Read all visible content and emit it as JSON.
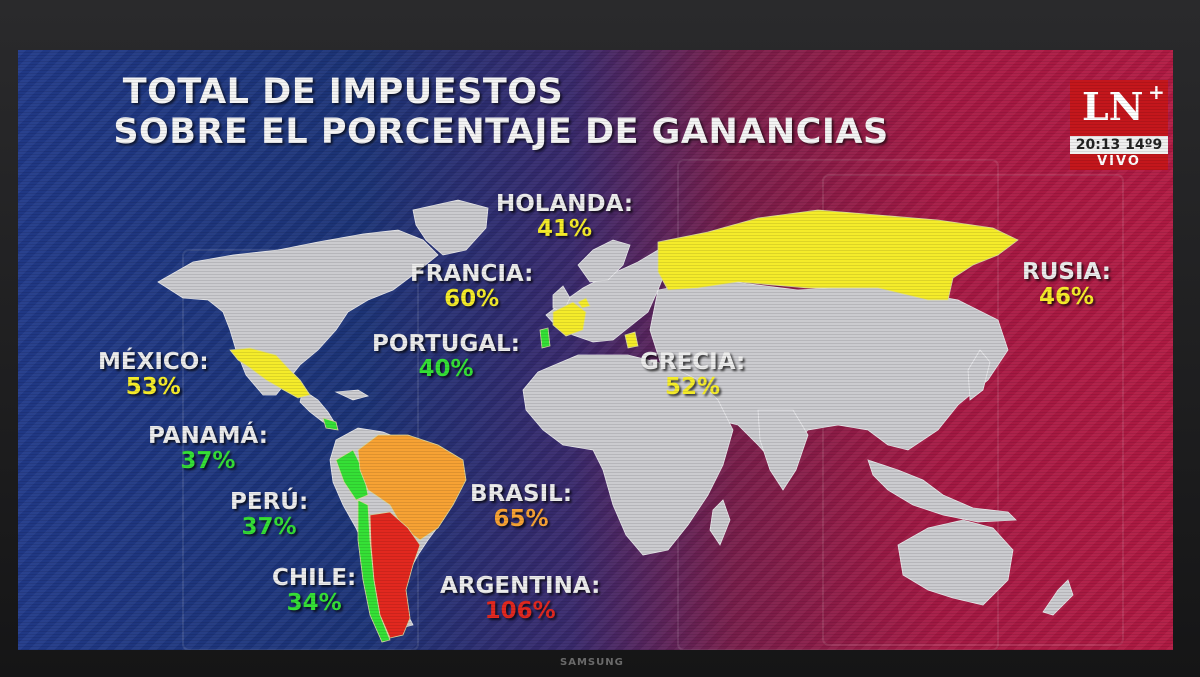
{
  "title": {
    "line1": "TOTAL DE IMPUESTOS",
    "line2": "SOBRE EL PORCENTAJE DE GANANCIAS"
  },
  "channel": {
    "logo": "LN",
    "logo_plus": "+",
    "clock": "20:13 14º9",
    "live": "VIVO"
  },
  "bezel_brand": "SAMSUNG",
  "colors": {
    "green": "#35e036",
    "yellow": "#f5ec2a",
    "orange": "#f7a234",
    "red": "#e2281f",
    "land": "#cbcbcf"
  },
  "countries": [
    {
      "id": "holanda",
      "name": "HOLANDA:",
      "pct": "41%",
      "color": "yellow"
    },
    {
      "id": "francia",
      "name": "FRANCIA:",
      "pct": "60%",
      "color": "yellow"
    },
    {
      "id": "rusia",
      "name": "RUSIA:",
      "pct": "46%",
      "color": "yellow"
    },
    {
      "id": "portugal",
      "name": "PORTUGAL:",
      "pct": "40%",
      "color": "green"
    },
    {
      "id": "grecia",
      "name": "GRECIA:",
      "pct": "52%",
      "color": "yellow"
    },
    {
      "id": "mexico",
      "name": "MÉXICO:",
      "pct": "53%",
      "color": "yellow"
    },
    {
      "id": "panama",
      "name": "PANAMÁ:",
      "pct": "37%",
      "color": "green"
    },
    {
      "id": "peru",
      "name": "PERÚ:",
      "pct": "37%",
      "color": "green"
    },
    {
      "id": "brasil",
      "name": "BRASIL:",
      "pct": "65%",
      "color": "orange"
    },
    {
      "id": "chile",
      "name": "CHILE:",
      "pct": "34%",
      "color": "green"
    },
    {
      "id": "argentina",
      "name": "ARGENTINA:",
      "pct": "106%",
      "color": "red"
    }
  ]
}
